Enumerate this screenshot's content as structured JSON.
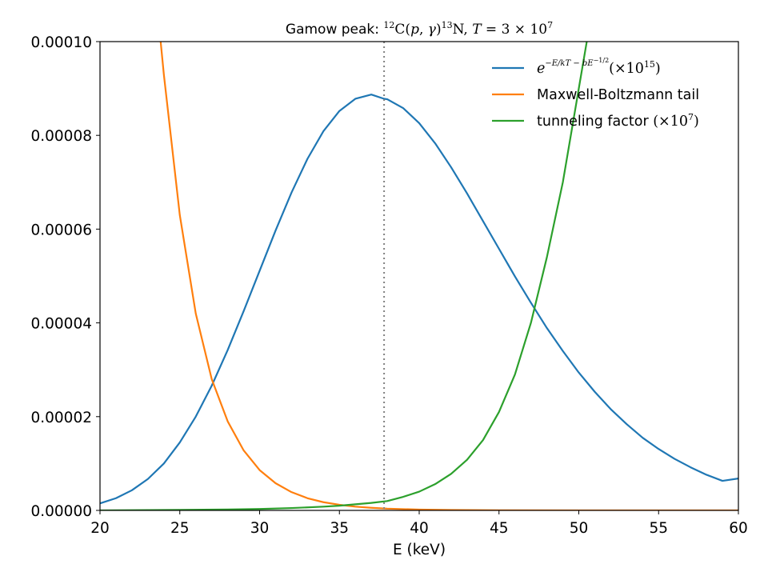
{
  "chart_data": {
    "type": "line",
    "title": {
      "prefix": "Gamow peak: ",
      "sup_12": "12",
      "reaction": "C(",
      "p": "p",
      "comma": ", ",
      "gamma": "γ",
      "close": ")",
      "sup_13": "13",
      "product": "N, ",
      "T": "T",
      "eq": " = 3 × 10",
      "T_exp": "7"
    },
    "xlabel": "E (keV)",
    "ylabel": "",
    "xlim": [
      20,
      60
    ],
    "ylim": [
      0,
      0.0001
    ],
    "x_ticks": [
      "20",
      "25",
      "30",
      "35",
      "40",
      "45",
      "50",
      "55",
      "60"
    ],
    "y_ticks": [
      "0.00000",
      "0.00002",
      "0.00004",
      "0.00006",
      "0.00008",
      "0.00010"
    ],
    "grid": false,
    "legend_position": "top-right",
    "peak_marker_x": 37.8,
    "series": [
      {
        "name": "e^{-E/kT - bE^{-1/2}} (×10^{15})",
        "color": "#1f77b4",
        "x": [
          20,
          21,
          22,
          23,
          24,
          25,
          26,
          27,
          28,
          29,
          30,
          31,
          32,
          33,
          34,
          35,
          36,
          37,
          37.8,
          38,
          39,
          40,
          41,
          42,
          43,
          44,
          45,
          46,
          47,
          48,
          49,
          50,
          51,
          52,
          53,
          54,
          55,
          56,
          57,
          58,
          59,
          60
        ],
        "y": [
          1.5e-06,
          2.6e-06,
          4.3e-06,
          6.7e-06,
          1e-05,
          1.45e-05,
          2e-05,
          2.66e-05,
          3.42e-05,
          4.25e-05,
          5.11e-05,
          5.97e-05,
          6.78e-05,
          7.5e-05,
          8.09e-05,
          8.52e-05,
          8.78e-05,
          8.87e-05,
          8.78e-05,
          8.77e-05,
          8.58e-05,
          8.26e-05,
          7.83e-05,
          7.32e-05,
          6.76e-05,
          6.17e-05,
          5.58e-05,
          4.99e-05,
          4.43e-05,
          3.89e-05,
          3.4e-05,
          2.94e-05,
          2.53e-05,
          2.16e-05,
          1.84e-05,
          1.55e-05,
          1.31e-05,
          1.1e-05,
          9.2e-06,
          7.6e-06,
          6.3e-06,
          6.8e-06
        ]
      },
      {
        "name": "Maxwell-Boltzmann tail",
        "color": "#ff7f0e",
        "x": [
          23.8,
          24,
          25,
          26,
          27,
          28,
          29,
          30,
          31,
          32,
          33,
          34,
          35,
          36,
          37,
          38,
          40,
          42,
          45,
          50,
          55,
          60
        ],
        "y": [
          0.0001,
          9.3e-05,
          6.3e-05,
          4.2e-05,
          2.8e-05,
          1.9e-05,
          1.28e-05,
          8.6e-06,
          5.8e-06,
          3.9e-06,
          2.6e-06,
          1.75e-06,
          1.2e-06,
          8e-07,
          5.5e-07,
          3.7e-07,
          1.7e-07,
          8e-08,
          2e-08,
          0,
          0,
          0
        ]
      },
      {
        "name": "tunneling factor (×10^7)",
        "color": "#2ca02c",
        "x": [
          20,
          25,
          28,
          30,
          32,
          34,
          35,
          36,
          37,
          38,
          39,
          40,
          41,
          42,
          43,
          44,
          45,
          46,
          47,
          48,
          49,
          50,
          50.5
        ],
        "y": [
          0,
          1e-07,
          2e-07,
          3e-07,
          5e-07,
          8e-07,
          1e-06,
          1.3e-06,
          1.6e-06,
          2e-06,
          2.9e-06,
          4e-06,
          5.6e-06,
          7.8e-06,
          1.08e-05,
          1.5e-05,
          2.1e-05,
          2.9e-05,
          4e-05,
          5.4e-05,
          7e-05,
          9e-05,
          0.0001
        ]
      }
    ],
    "legend": [
      {
        "label_parts": [
          "e",
          "−E/kT − bE",
          "−1/2",
          "(×10",
          "15",
          ")"
        ],
        "color": "#1f77b4"
      },
      {
        "label_parts": [
          "Maxwell-Boltzmann tail"
        ],
        "color": "#ff7f0e"
      },
      {
        "label_parts": [
          "tunneling factor ",
          "(×10",
          "7",
          ")"
        ],
        "color": "#2ca02c"
      }
    ]
  }
}
